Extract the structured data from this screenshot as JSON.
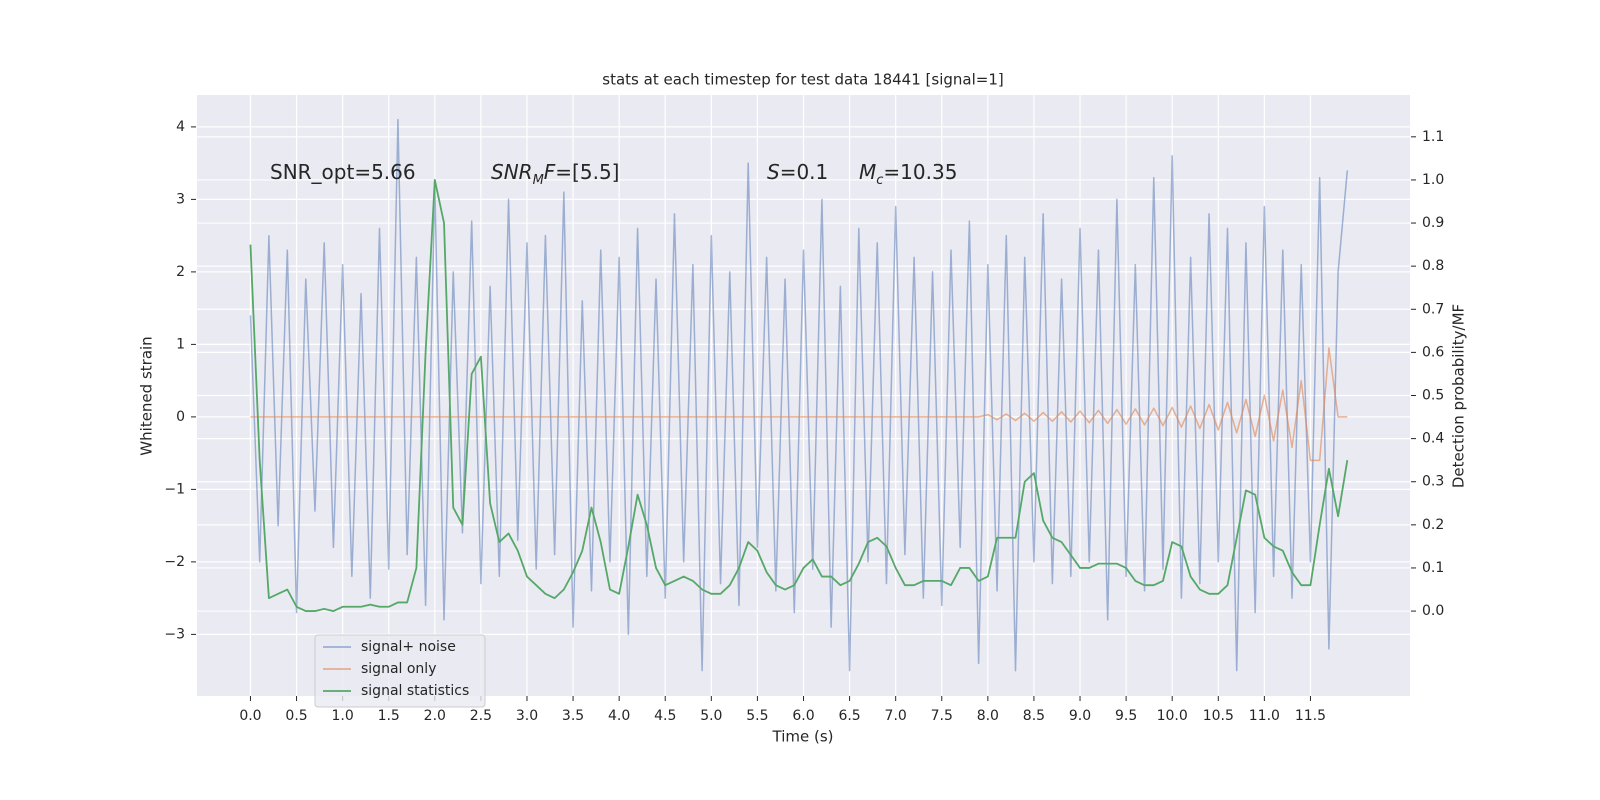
{
  "chart_data": {
    "type": "line",
    "title": "stats at each timestep for test data 18441 [signal=1]",
    "xlabel": "Time (s)",
    "ylabel": "Whitened strain",
    "y2label": "Detection probability/MF",
    "annotations": [
      [
        {
          "text": "SNR_opt=5.66"
        }
      ],
      [
        {
          "text": "SNR",
          "italic": true
        },
        {
          "text": "M",
          "italic": true,
          "sub": true
        },
        {
          "text": "F",
          "italic": true
        },
        {
          "text": "=[5.5]"
        }
      ],
      [
        {
          "text": "S",
          "italic": true
        },
        {
          "text": "=0.1"
        }
      ],
      [
        {
          "text": "M",
          "italic": true
        },
        {
          "text": "c",
          "italic": true,
          "sub": true
        },
        {
          "text": "=10.35"
        }
      ]
    ],
    "x": [
      0.0,
      0.1,
      0.2,
      0.3,
      0.4,
      0.5,
      0.6,
      0.7,
      0.8,
      0.9,
      1.0,
      1.1,
      1.2,
      1.3,
      1.4,
      1.5,
      1.6,
      1.7,
      1.8,
      1.9,
      2.0,
      2.1,
      2.2,
      2.3,
      2.4,
      2.5,
      2.6,
      2.7,
      2.8,
      2.9,
      3.0,
      3.1,
      3.2,
      3.3,
      3.4,
      3.5,
      3.6,
      3.7,
      3.8,
      3.9,
      4.0,
      4.1,
      4.2,
      4.3,
      4.4,
      4.5,
      4.6,
      4.7,
      4.8,
      4.9,
      5.0,
      5.1,
      5.2,
      5.3,
      5.4,
      5.5,
      5.6,
      5.7,
      5.8,
      5.9,
      6.0,
      6.1,
      6.2,
      6.3,
      6.4,
      6.5,
      6.6,
      6.7,
      6.8,
      6.9,
      7.0,
      7.1,
      7.2,
      7.3,
      7.4,
      7.5,
      7.6,
      7.7,
      7.8,
      7.9,
      8.0,
      8.1,
      8.2,
      8.3,
      8.4,
      8.5,
      8.6,
      8.7,
      8.8,
      8.9,
      9.0,
      9.1,
      9.2,
      9.3,
      9.4,
      9.5,
      9.6,
      9.7,
      9.8,
      9.9,
      10.0,
      10.1,
      10.2,
      10.3,
      10.4,
      10.5,
      10.6,
      10.7,
      10.8,
      10.9,
      11.0,
      11.1,
      11.2,
      11.3,
      11.4,
      11.5,
      11.6,
      11.7,
      11.8,
      11.9
    ],
    "series": [
      {
        "name": "signal+ noise",
        "color": "#4c72b0",
        "values": [
          1.4,
          -2.0,
          2.5,
          -1.5,
          2.3,
          -2.7,
          1.9,
          -1.3,
          2.4,
          -1.8,
          2.1,
          -2.2,
          1.7,
          -2.5,
          2.6,
          -2.1,
          4.1,
          -1.9,
          2.2,
          -2.6,
          3.2,
          -2.8,
          2.0,
          -1.6,
          2.7,
          -2.3,
          1.8,
          -2.2,
          3.0,
          -1.7,
          2.4,
          -2.1,
          2.5,
          -1.9,
          3.1,
          -2.9,
          1.6,
          -2.4,
          2.3,
          -2.0,
          2.2,
          -3.0,
          2.6,
          -2.2,
          1.9,
          -2.5,
          2.8,
          -2.0,
          2.1,
          -3.5,
          2.5,
          -2.3,
          2.0,
          -2.6,
          3.5,
          -1.8,
          2.2,
          -2.4,
          1.9,
          -2.7,
          2.3,
          -2.1,
          3.0,
          -2.9,
          1.8,
          -3.5,
          2.6,
          -2.0,
          2.4,
          -2.3,
          2.9,
          -1.9,
          2.2,
          -2.5,
          2.0,
          -2.6,
          2.3,
          -1.8,
          2.7,
          -3.4,
          2.1,
          -2.4,
          2.5,
          -3.5,
          2.2,
          -2.0,
          2.8,
          -2.3,
          1.9,
          -2.2,
          2.6,
          -2.0,
          2.3,
          -2.8,
          3.0,
          -2.2,
          2.1,
          -2.4,
          3.3,
          -2.1,
          3.6,
          -2.5,
          2.2,
          -2.3,
          2.8,
          -2.0,
          2.6,
          -3.5,
          2.4,
          -2.7,
          2.9,
          -2.2,
          2.3,
          -2.5,
          2.1,
          -2.0,
          3.3,
          -3.2,
          2.0,
          3.4
        ]
      },
      {
        "name": "signal only",
        "color": "#dd8452",
        "values": [
          0,
          0,
          0,
          0,
          0,
          0,
          0,
          0,
          0,
          0,
          0,
          0,
          0,
          0,
          0,
          0,
          0,
          0,
          0,
          0,
          0,
          0,
          0,
          0,
          0,
          0,
          0,
          0,
          0,
          0,
          0,
          0,
          0,
          0,
          0,
          0,
          0,
          0,
          0,
          0,
          0,
          0,
          0,
          0,
          0,
          0,
          0,
          0,
          0,
          0,
          0,
          0,
          0,
          0,
          0,
          0,
          0,
          0,
          0,
          0,
          0,
          0,
          0,
          0,
          0,
          0,
          0,
          0,
          0,
          0,
          0,
          0,
          0,
          0,
          0,
          0,
          0,
          0,
          0,
          0,
          0.03,
          -0.04,
          0.04,
          -0.05,
          0.05,
          -0.06,
          0.06,
          -0.06,
          0.07,
          -0.07,
          0.08,
          -0.08,
          0.09,
          -0.09,
          0.1,
          -0.1,
          0.11,
          -0.11,
          0.12,
          -0.12,
          0.13,
          -0.14,
          0.15,
          -0.16,
          0.17,
          -0.18,
          0.2,
          -0.22,
          0.24,
          -0.27,
          0.3,
          -0.33,
          0.37,
          -0.42,
          0.5,
          -0.6,
          -0.6,
          0.95,
          0,
          0
        ]
      },
      {
        "name": "signal statistics",
        "color": "#55a868",
        "axis": "y2",
        "values": [
          0.85,
          0.35,
          0.03,
          0.04,
          0.05,
          0.01,
          0.0,
          0.0,
          0.005,
          0.0,
          0.01,
          0.01,
          0.01,
          0.015,
          0.01,
          0.01,
          0.02,
          0.02,
          0.1,
          0.6,
          1.0,
          0.9,
          0.24,
          0.2,
          0.55,
          0.59,
          0.25,
          0.16,
          0.18,
          0.14,
          0.08,
          0.06,
          0.04,
          0.03,
          0.05,
          0.09,
          0.14,
          0.24,
          0.16,
          0.05,
          0.04,
          0.15,
          0.27,
          0.2,
          0.1,
          0.06,
          0.07,
          0.08,
          0.07,
          0.05,
          0.04,
          0.04,
          0.06,
          0.1,
          0.16,
          0.14,
          0.09,
          0.06,
          0.05,
          0.06,
          0.1,
          0.12,
          0.08,
          0.08,
          0.06,
          0.07,
          0.11,
          0.16,
          0.17,
          0.15,
          0.1,
          0.06,
          0.06,
          0.07,
          0.07,
          0.07,
          0.06,
          0.1,
          0.1,
          0.07,
          0.08,
          0.17,
          0.17,
          0.17,
          0.3,
          0.32,
          0.21,
          0.17,
          0.16,
          0.13,
          0.1,
          0.1,
          0.11,
          0.11,
          0.11,
          0.1,
          0.07,
          0.06,
          0.06,
          0.07,
          0.16,
          0.15,
          0.08,
          0.05,
          0.04,
          0.04,
          0.06,
          0.17,
          0.28,
          0.27,
          0.17,
          0.15,
          0.14,
          0.09,
          0.06,
          0.06,
          0.2,
          0.33,
          0.22,
          0.35
        ]
      }
    ],
    "xlim": [
      -0.58,
      12.58
    ],
    "xticks": [
      {
        "value": 0,
        "label": "0.0"
      },
      0.5,
      {
        "value": 1,
        "label": "1.0"
      },
      1.5,
      {
        "value": 2,
        "label": "2.0"
      },
      2.5,
      {
        "value": 3,
        "label": "3.0"
      },
      3.5,
      {
        "value": 4,
        "label": "4.0"
      },
      4.5,
      {
        "value": 5,
        "label": "5.0"
      },
      5.5,
      {
        "value": 6,
        "label": "6.0"
      },
      6.5,
      {
        "value": 7,
        "label": "7.0"
      },
      7.5,
      {
        "value": 8,
        "label": "8.0"
      },
      8.5,
      {
        "value": 9,
        "label": "9.0"
      },
      9.5,
      {
        "value": 10,
        "label": "10.0"
      },
      10.5,
      {
        "value": 11,
        "label": "11.0"
      },
      11.5
    ],
    "ylim": [
      -3.85,
      4.44
    ],
    "yticks": [
      {
        "value": -3,
        "label": "−3"
      },
      {
        "value": -2,
        "label": "−2"
      },
      {
        "value": -1,
        "label": "−1"
      },
      0,
      1,
      2,
      3,
      4
    ],
    "y2lim": [
      -0.197,
      1.197
    ],
    "y2ticks": [
      {
        "value": 0,
        "label": "0.0"
      },
      0.1,
      0.2,
      0.3,
      0.4,
      0.5,
      0.6,
      0.7,
      0.8,
      0.9,
      {
        "value": 1,
        "label": "1.0"
      },
      1.1
    ],
    "grid": true,
    "legend": "lower left"
  }
}
